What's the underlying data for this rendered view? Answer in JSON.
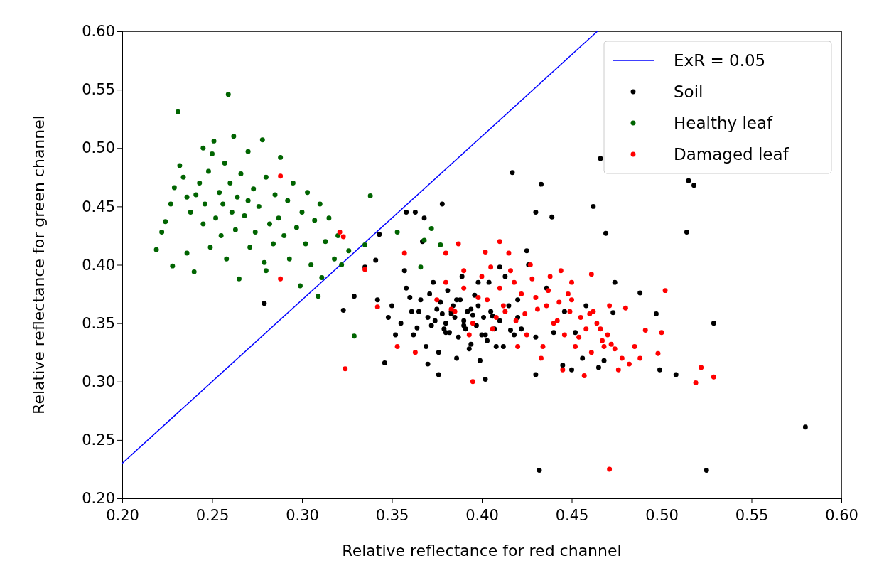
{
  "chart_data": {
    "type": "scatter",
    "xlabel": "Relative reflectance for red channel",
    "ylabel": "Relative reflectance for green channel",
    "xlim": [
      0.2,
      0.6
    ],
    "ylim": [
      0.2,
      0.6
    ],
    "xticks": [
      {
        "value": 0.2,
        "label": "0.20"
      },
      {
        "value": 0.25,
        "label": "0.25"
      },
      {
        "value": 0.3,
        "label": "0.30"
      },
      {
        "value": 0.35,
        "label": "0.35"
      },
      {
        "value": 0.4,
        "label": "0.40"
      },
      {
        "value": 0.45,
        "label": "0.45"
      },
      {
        "value": 0.5,
        "label": "0.50"
      },
      {
        "value": 0.55,
        "label": "0.55"
      },
      {
        "value": 0.6,
        "label": "0.60"
      }
    ],
    "yticks": [
      {
        "value": 0.2,
        "label": "0.20"
      },
      {
        "value": 0.25,
        "label": "0.25"
      },
      {
        "value": 0.3,
        "label": "0.30"
      },
      {
        "value": 0.35,
        "label": "0.35"
      },
      {
        "value": 0.4,
        "label": "0.40"
      },
      {
        "value": 0.45,
        "label": "0.45"
      },
      {
        "value": 0.5,
        "label": "0.50"
      },
      {
        "value": 0.55,
        "label": "0.55"
      },
      {
        "value": 0.6,
        "label": "0.60"
      }
    ],
    "grid": false,
    "legend": "top right",
    "marker": "circle",
    "series": [
      {
        "name": "ExR = 0.05",
        "type": "line",
        "color": "#0000ff",
        "line_style": "solid",
        "marker": "none",
        "x": [
          0.2,
          0.4643
        ],
        "values": [
          0.23,
          0.6
        ]
      },
      {
        "name": "Soil",
        "color": "#000000",
        "x": [
          0.279,
          0.323,
          0.329,
          0.346,
          0.432,
          0.525,
          0.58,
          0.466,
          0.518,
          0.515,
          0.514,
          0.462,
          0.417,
          0.433,
          0.439,
          0.43,
          0.425,
          0.469,
          0.529,
          0.508,
          0.499,
          0.497,
          0.488,
          0.474,
          0.473,
          0.378,
          0.363,
          0.358,
          0.368,
          0.343,
          0.341,
          0.335,
          0.37,
          0.376,
          0.402,
          0.43,
          0.45,
          0.445,
          0.465,
          0.468,
          0.456,
          0.342,
          0.35,
          0.36,
          0.365,
          0.37,
          0.372,
          0.375,
          0.378,
          0.38,
          0.382,
          0.384,
          0.385,
          0.387,
          0.388,
          0.39,
          0.391,
          0.392,
          0.394,
          0.395,
          0.397,
          0.398,
          0.4,
          0.401,
          0.403,
          0.405,
          0.407,
          0.41,
          0.412,
          0.415,
          0.418,
          0.42,
          0.355,
          0.358,
          0.362,
          0.366,
          0.369,
          0.373,
          0.376,
          0.379,
          0.381,
          0.383,
          0.386,
          0.389,
          0.393,
          0.396,
          0.399,
          0.404,
          0.408,
          0.413,
          0.422,
          0.426,
          0.43,
          0.436,
          0.44,
          0.446,
          0.452,
          0.458,
          0.348,
          0.352,
          0.357,
          0.361,
          0.364,
          0.367,
          0.371,
          0.374,
          0.377,
          0.38,
          0.383,
          0.386,
          0.39,
          0.394,
          0.398,
          0.402,
          0.406,
          0.41,
          0.416,
          0.42
        ],
        "values": [
          0.367,
          0.361,
          0.373,
          0.316,
          0.224,
          0.224,
          0.261,
          0.491,
          0.468,
          0.472,
          0.428,
          0.45,
          0.479,
          0.469,
          0.441,
          0.445,
          0.412,
          0.427,
          0.35,
          0.306,
          0.31,
          0.358,
          0.376,
          0.385,
          0.359,
          0.452,
          0.445,
          0.445,
          0.44,
          0.426,
          0.404,
          0.398,
          0.315,
          0.306,
          0.302,
          0.306,
          0.31,
          0.314,
          0.312,
          0.318,
          0.32,
          0.37,
          0.365,
          0.372,
          0.36,
          0.355,
          0.348,
          0.362,
          0.358,
          0.35,
          0.342,
          0.365,
          0.355,
          0.338,
          0.37,
          0.352,
          0.345,
          0.36,
          0.332,
          0.357,
          0.348,
          0.365,
          0.34,
          0.355,
          0.335,
          0.36,
          0.345,
          0.352,
          0.33,
          0.365,
          0.34,
          0.355,
          0.35,
          0.38,
          0.34,
          0.37,
          0.33,
          0.385,
          0.325,
          0.345,
          0.378,
          0.36,
          0.32,
          0.39,
          0.328,
          0.374,
          0.318,
          0.385,
          0.33,
          0.39,
          0.345,
          0.4,
          0.338,
          0.38,
          0.342,
          0.36,
          0.342,
          0.365,
          0.355,
          0.34,
          0.395,
          0.36,
          0.346,
          0.42,
          0.375,
          0.352,
          0.368,
          0.342,
          0.358,
          0.37,
          0.348,
          0.362,
          0.385,
          0.34,
          0.356,
          0.398,
          0.344,
          0.37
        ]
      },
      {
        "name": "Healthy leaf",
        "color": "#006400",
        "x": [
          0.231,
          0.259,
          0.219,
          0.222,
          0.224,
          0.228,
          0.227,
          0.229,
          0.232,
          0.234,
          0.236,
          0.238,
          0.24,
          0.241,
          0.243,
          0.245,
          0.246,
          0.248,
          0.249,
          0.25,
          0.251,
          0.252,
          0.254,
          0.255,
          0.256,
          0.257,
          0.258,
          0.26,
          0.261,
          0.262,
          0.263,
          0.264,
          0.265,
          0.266,
          0.268,
          0.27,
          0.271,
          0.273,
          0.274,
          0.276,
          0.278,
          0.279,
          0.28,
          0.282,
          0.284,
          0.285,
          0.287,
          0.288,
          0.29,
          0.292,
          0.293,
          0.295,
          0.297,
          0.299,
          0.3,
          0.302,
          0.303,
          0.305,
          0.307,
          0.309,
          0.31,
          0.311,
          0.313,
          0.315,
          0.318,
          0.32,
          0.322,
          0.326,
          0.329,
          0.335,
          0.338,
          0.353,
          0.366,
          0.368,
          0.372,
          0.377,
          0.236,
          0.245,
          0.27,
          0.28
        ],
        "values": [
          0.531,
          0.546,
          0.413,
          0.428,
          0.437,
          0.399,
          0.452,
          0.466,
          0.485,
          0.475,
          0.458,
          0.445,
          0.394,
          0.46,
          0.47,
          0.435,
          0.452,
          0.48,
          0.415,
          0.495,
          0.506,
          0.44,
          0.462,
          0.425,
          0.452,
          0.487,
          0.405,
          0.47,
          0.445,
          0.51,
          0.43,
          0.458,
          0.388,
          0.478,
          0.442,
          0.497,
          0.415,
          0.465,
          0.428,
          0.45,
          0.507,
          0.402,
          0.475,
          0.435,
          0.418,
          0.46,
          0.44,
          0.492,
          0.425,
          0.455,
          0.405,
          0.47,
          0.432,
          0.382,
          0.445,
          0.418,
          0.462,
          0.4,
          0.438,
          0.373,
          0.452,
          0.389,
          0.42,
          0.44,
          0.405,
          0.425,
          0.4,
          0.412,
          0.339,
          0.417,
          0.459,
          0.428,
          0.398,
          0.421,
          0.431,
          0.417,
          0.41,
          0.5,
          0.455,
          0.395
        ]
      },
      {
        "name": "Damaged leaf",
        "color": "#ff0000",
        "x": [
          0.288,
          0.288,
          0.321,
          0.323,
          0.324,
          0.335,
          0.471,
          0.522,
          0.529,
          0.519,
          0.502,
          0.5,
          0.498,
          0.491,
          0.485,
          0.48,
          0.471,
          0.461,
          0.444,
          0.45,
          0.41,
          0.402,
          0.387,
          0.38,
          0.357,
          0.342,
          0.353,
          0.363,
          0.395,
          0.375,
          0.38,
          0.385,
          0.39,
          0.395,
          0.4,
          0.403,
          0.406,
          0.41,
          0.413,
          0.416,
          0.419,
          0.422,
          0.425,
          0.428,
          0.431,
          0.434,
          0.437,
          0.44,
          0.443,
          0.446,
          0.449,
          0.452,
          0.455,
          0.458,
          0.461,
          0.464,
          0.467,
          0.47,
          0.474,
          0.478,
          0.482,
          0.39,
          0.398,
          0.405,
          0.412,
          0.418,
          0.424,
          0.43,
          0.436,
          0.442,
          0.448,
          0.454,
          0.46,
          0.466,
          0.472,
          0.383,
          0.393,
          0.408,
          0.42,
          0.433,
          0.445,
          0.457,
          0.468,
          0.476,
          0.488,
          0.415,
          0.427,
          0.438,
          0.45,
          0.462
        ],
        "values": [
          0.476,
          0.388,
          0.428,
          0.424,
          0.311,
          0.396,
          0.225,
          0.312,
          0.304,
          0.299,
          0.378,
          0.342,
          0.324,
          0.344,
          0.33,
          0.363,
          0.365,
          0.392,
          0.395,
          0.385,
          0.42,
          0.411,
          0.418,
          0.41,
          0.41,
          0.364,
          0.33,
          0.325,
          0.3,
          0.37,
          0.385,
          0.36,
          0.38,
          0.35,
          0.39,
          0.37,
          0.345,
          0.38,
          0.36,
          0.395,
          0.352,
          0.375,
          0.34,
          0.388,
          0.362,
          0.33,
          0.378,
          0.35,
          0.368,
          0.34,
          0.36,
          0.33,
          0.355,
          0.345,
          0.325,
          0.35,
          0.335,
          0.34,
          0.328,
          0.32,
          0.315,
          0.395,
          0.372,
          0.398,
          0.365,
          0.385,
          0.358,
          0.372,
          0.365,
          0.352,
          0.375,
          0.338,
          0.358,
          0.345,
          0.332,
          0.362,
          0.34,
          0.355,
          0.33,
          0.32,
          0.31,
          0.305,
          0.33,
          0.31,
          0.32,
          0.41,
          0.4,
          0.39,
          0.37,
          0.36
        ]
      }
    ]
  }
}
